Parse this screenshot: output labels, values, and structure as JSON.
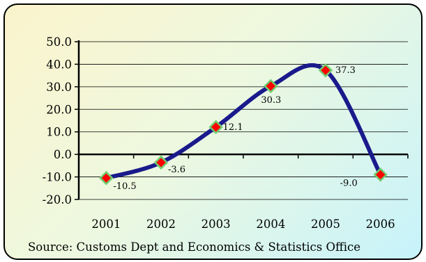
{
  "chart_data": {
    "type": "line",
    "categories": [
      "2001",
      "2002",
      "2003",
      "2004",
      "2005",
      "2006"
    ],
    "values": [
      -10.5,
      -3.6,
      12.1,
      30.3,
      37.3,
      -9.0
    ],
    "value_labels": [
      "-10.5",
      "-3.6",
      "12.1",
      "30.3",
      "37.3",
      "-9.0"
    ],
    "title": "",
    "xlabel": "",
    "ylabel": "",
    "ylim": [
      -20,
      50
    ],
    "yticks": [
      "50.0",
      "40.0",
      "30.0",
      "20.0",
      "10.0",
      "0.0",
      "-10.0",
      "-20.0"
    ],
    "ytick_values": [
      50,
      40,
      30,
      20,
      10,
      0,
      -10,
      -20
    ],
    "smoothed": true,
    "grid": true,
    "legend": "none"
  },
  "source_note": "Source: Customs Dept and Economics & Statistics Office",
  "colors": {
    "line": "#1a1a8c",
    "marker_fill": "#ff0000",
    "marker_edge": "#6fcf6f",
    "grid": "#000000"
  }
}
